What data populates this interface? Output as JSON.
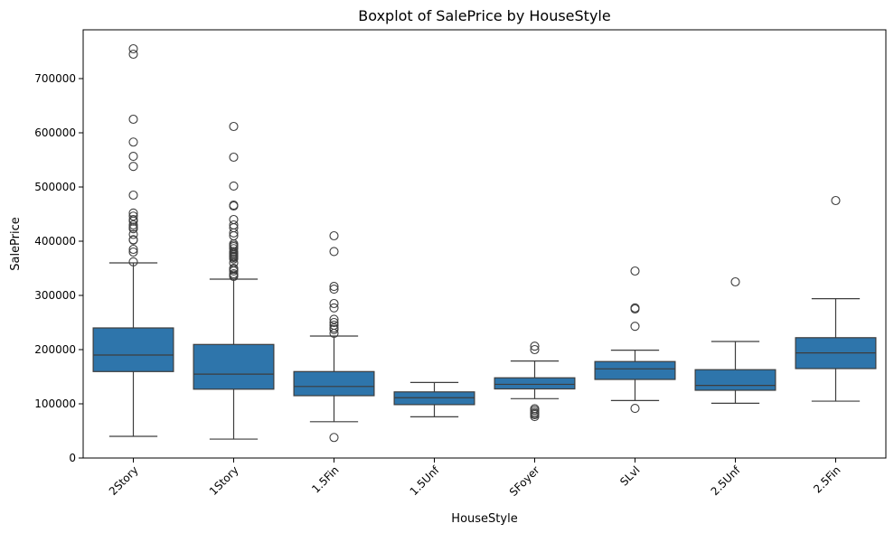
{
  "chart_data": {
    "type": "box",
    "title": "Boxplot of SalePrice by HouseStyle",
    "xlabel": "HouseStyle",
    "ylabel": "SalePrice",
    "ylim": [
      0,
      790000
    ],
    "yticks": [
      0,
      100000,
      200000,
      300000,
      400000,
      500000,
      600000,
      700000
    ],
    "ytick_labels": [
      "0",
      "100000",
      "200000",
      "300000",
      "400000",
      "500000",
      "600000",
      "700000"
    ],
    "grid": false,
    "box_color": "#2e75ab",
    "categories": [
      "2Story",
      "1Story",
      "1.5Fin",
      "1.5Unf",
      "SFoyer",
      "SLvl",
      "2.5Unf",
      "2.5Fin"
    ],
    "boxes": [
      {
        "category": "2Story",
        "whisker_low": 40000,
        "q1": 159500,
        "median": 190000,
        "q3": 240000,
        "whisker_high": 360000,
        "outliers": [
          755000,
          745000,
          625000,
          582900,
          556581,
          538000,
          485000,
          451950,
          446261,
          440000,
          437154,
          430000,
          426000,
          423000,
          412500,
          402861,
          402000,
          385000,
          380000,
          361919
        ]
      },
      {
        "category": "1Story",
        "whisker_low": 34900,
        "q1": 127000,
        "median": 154750,
        "q3": 209500,
        "whisker_high": 330000,
        "outliers": [
          611657,
          555000,
          501837,
          466500,
          465000,
          440000,
          430000,
          424870,
          415298,
          410000,
          395192,
          392500,
          390000,
          386250,
          381000,
          378500,
          377500,
          377426,
          375000,
          372500,
          372402,
          370878,
          369900,
          367294,
          360000,
          350000,
          348000,
          345000,
          340000,
          337500,
          335000
        ]
      },
      {
        "category": "1.5Fin",
        "whisker_low": 67000,
        "q1": 115000,
        "median": 132000,
        "q3": 159500,
        "whisker_high": 225000,
        "outliers": [
          410000,
          381000,
          316600,
          311500,
          285000,
          277000,
          256000,
          250000,
          245000,
          240000,
          237000,
          230000,
          37900
        ]
      },
      {
        "category": "1.5Unf",
        "whisker_low": 76000,
        "q1": 98500,
        "median": 111250,
        "q3": 122000,
        "whisker_high": 139400,
        "outliers": []
      },
      {
        "category": "SFoyer",
        "whisker_low": 109500,
        "q1": 127500,
        "median": 135960,
        "q3": 148000,
        "whisker_high": 179000,
        "outliers": [
          206300,
          200000,
          91000,
          88000,
          84500,
          82000,
          80000,
          76500
        ]
      },
      {
        "category": "SLvl",
        "whisker_low": 106000,
        "q1": 145000,
        "median": 164500,
        "q3": 178000,
        "whisker_high": 198900,
        "outliers": [
          345000,
          277000,
          275000,
          243000,
          91500
        ]
      },
      {
        "category": "2.5Unf",
        "whisker_low": 101000,
        "q1": 125000,
        "median": 133900,
        "q3": 163000,
        "whisker_high": 215000,
        "outliers": [
          325000
        ]
      },
      {
        "category": "2.5Fin",
        "whisker_low": 104900,
        "q1": 165000,
        "median": 194000,
        "q3": 222000,
        "whisker_high": 294000,
        "outliers": [
          475000
        ]
      }
    ]
  }
}
